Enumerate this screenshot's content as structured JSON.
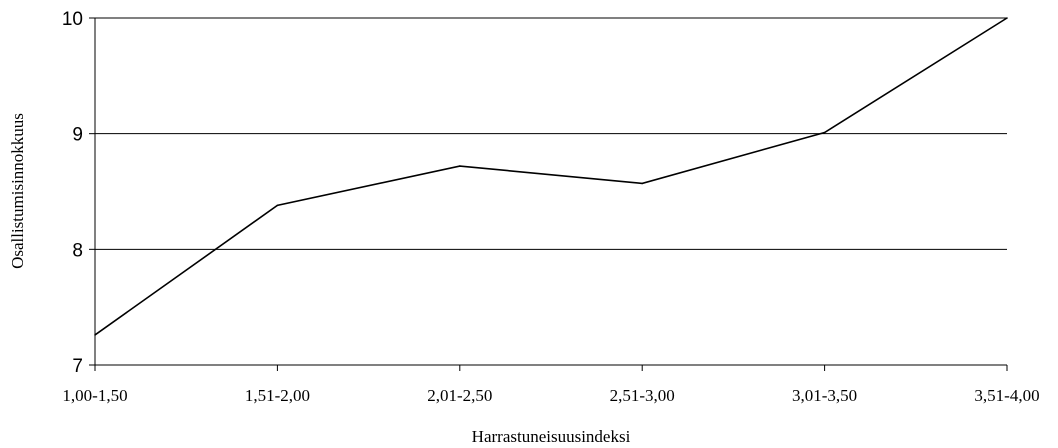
{
  "chart_data": {
    "type": "line",
    "title": "",
    "xlabel": "Harrastuneisuusindeksi",
    "ylabel": "Osallistumisinnokkuus",
    "categories": [
      "1,00-1,50",
      "1,51-2,00",
      "2,01-2,50",
      "2,51-3,00",
      "3,01-3,50",
      "3,51-4,00"
    ],
    "series": [
      {
        "values": [
          7.26,
          8.38,
          8.72,
          8.57,
          9.01,
          10.0
        ],
        "color": "#000000"
      }
    ],
    "ylim": [
      7,
      10
    ],
    "yticks": [
      "7",
      "8",
      "9",
      "10"
    ],
    "grid": true,
    "legend": "none"
  }
}
